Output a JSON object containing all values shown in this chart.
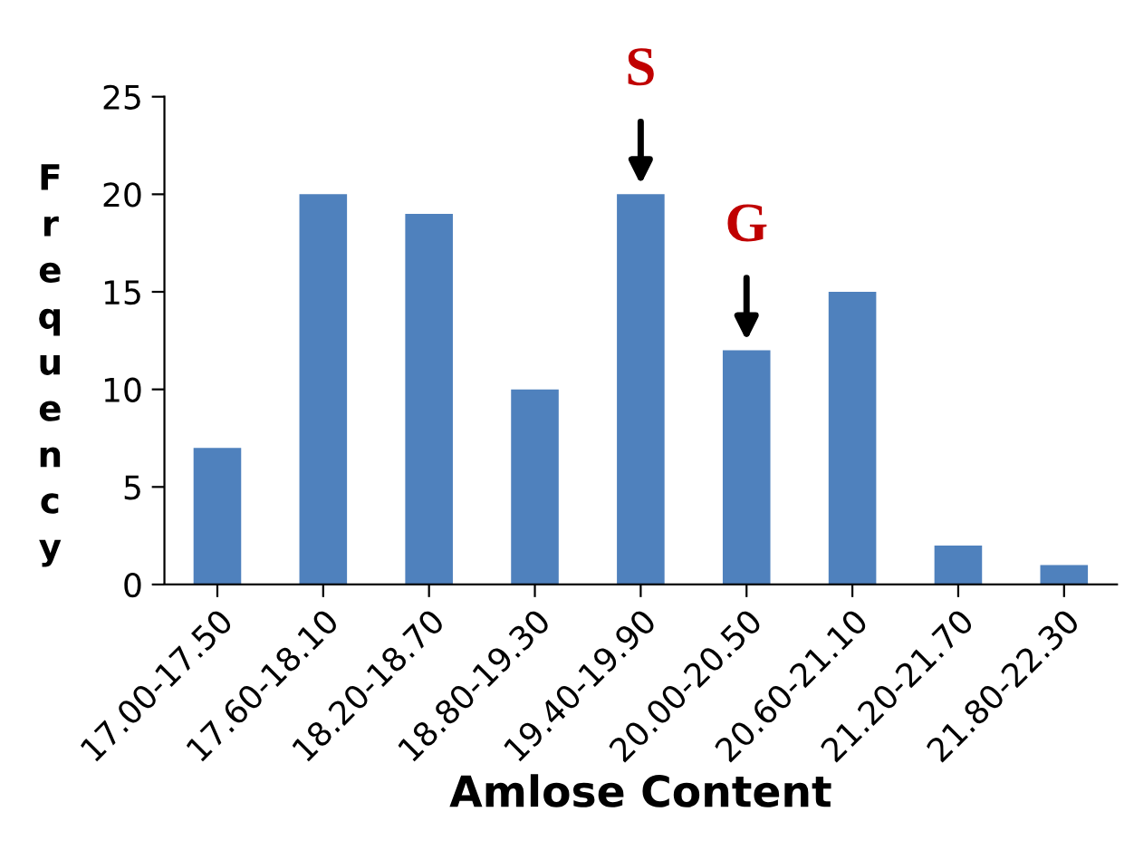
{
  "chart_data": {
    "type": "bar",
    "xlabel": "Amlose Content",
    "ylabel": "Frequency",
    "categories": [
      "17.00-17.50",
      "17.60-18.10",
      "18.20-18.70",
      "18.80-19.30",
      "19.40-19.90",
      "20.00-20.50",
      "20.60-21.10",
      "21.20-21.70",
      "21.80-22.30"
    ],
    "values": [
      7,
      20,
      19,
      10,
      20,
      12,
      15,
      2,
      1
    ],
    "color": "#4f81bd",
    "ylim": [
      0,
      25
    ],
    "yticks": [
      0,
      5,
      10,
      15,
      20,
      25
    ],
    "grid": false,
    "legend": false,
    "annotations": [
      {
        "text": "S",
        "x": "19.40-19.90",
        "y": 20
      },
      {
        "text": "G",
        "x": "20.00-20.50",
        "y": 12
      }
    ]
  }
}
